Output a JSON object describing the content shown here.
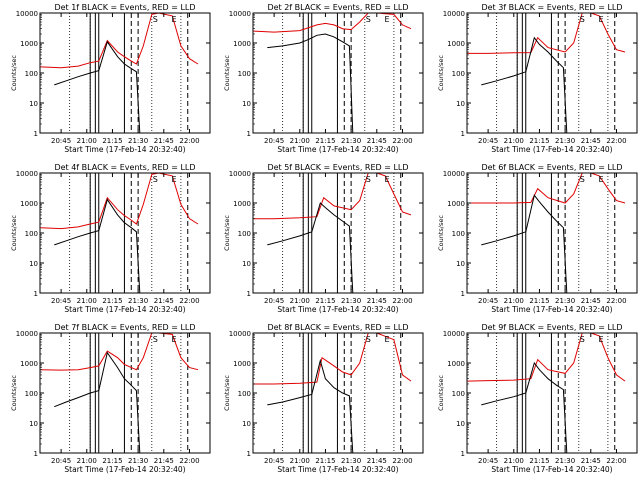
{
  "window": {
    "background": "#ffffff"
  },
  "colors": {
    "events": "#000000",
    "lld": "#e00000",
    "axis": "#000000"
  },
  "chart_data": [
    {
      "type": "line",
      "title": "Det 1f BLACK = Events, RED = LLD",
      "xlabel": "Start Time (17-Feb-14 20:32:40)",
      "ylabel": "Counts/sec",
      "y_scale": "log",
      "ylim": [
        1,
        10000
      ],
      "x_ticks": [
        "20:45",
        "21:00",
        "21:15",
        "21:30",
        "21:45",
        "22:00"
      ],
      "y_ticks": [
        "1",
        "10",
        "100",
        "1000",
        "10000"
      ],
      "annotations": [
        "S",
        "E"
      ],
      "series": [
        {
          "name": "BLACK = Events",
          "x": [
            "20:41",
            "20:48",
            "20:55",
            "21:02",
            "21:07",
            "21:12",
            "21:18",
            "21:22",
            "21:26",
            "21:29",
            "21:31"
          ],
          "y": [
            40,
            55,
            75,
            100,
            120,
            1100,
            350,
            200,
            140,
            110,
            1
          ]
        },
        {
          "name": "RED = LLD",
          "x": [
            "20:33",
            "20:45",
            "20:55",
            "21:02",
            "21:07",
            "21:12",
            "21:18",
            "21:22",
            "21:26",
            "21:29",
            "21:33",
            "21:38",
            "21:42",
            "21:50",
            "21:55",
            "22:00",
            "22:05"
          ],
          "y": [
            160,
            150,
            170,
            220,
            250,
            1200,
            500,
            350,
            250,
            200,
            800,
            9000,
            10000,
            8000,
            800,
            300,
            200
          ]
        }
      ]
    },
    {
      "type": "line",
      "title": "Det 2f BLACK = Events, RED = LLD",
      "xlabel": "Start Time (17-Feb-14 20:32:40)",
      "ylabel": "Counts/sec",
      "y_scale": "log",
      "ylim": [
        1,
        10000
      ],
      "x_ticks": [
        "20:45",
        "21:00",
        "21:15",
        "21:30",
        "21:45",
        "22:00"
      ],
      "y_ticks": [
        "1",
        "10",
        "100",
        "1000",
        "10000"
      ],
      "annotations": [
        "S",
        "E"
      ],
      "series": [
        {
          "name": "BLACK = Events",
          "x": [
            "20:41",
            "20:50",
            "21:00",
            "21:05",
            "21:10",
            "21:15",
            "21:20",
            "21:25",
            "21:29",
            "21:31"
          ],
          "y": [
            700,
            800,
            1000,
            1300,
            1800,
            2000,
            1600,
            1100,
            800,
            1
          ]
        },
        {
          "name": "RED = LLD",
          "x": [
            "20:33",
            "20:45",
            "21:00",
            "21:10",
            "21:15",
            "21:20",
            "21:25",
            "21:30",
            "21:35",
            "21:40",
            "21:45",
            "21:55",
            "22:00",
            "22:05"
          ],
          "y": [
            2500,
            2300,
            2600,
            4000,
            4500,
            4000,
            3000,
            2800,
            5000,
            10000,
            10000,
            9000,
            4000,
            3000
          ]
        }
      ]
    },
    {
      "type": "line",
      "title": "Det 3f BLACK = Events, RED = LLD",
      "xlabel": "Start Time (17-Feb-14 20:32:40)",
      "ylabel": "Counts/sec",
      "y_scale": "log",
      "ylim": [
        1,
        10000
      ],
      "x_ticks": [
        "20:45",
        "21:00",
        "21:15",
        "21:30",
        "21:45",
        "22:00"
      ],
      "y_ticks": [
        "1",
        "10",
        "100",
        "1000",
        "10000"
      ],
      "annotations": [
        "S",
        "E"
      ],
      "series": [
        {
          "name": "BLACK = Events",
          "x": [
            "20:41",
            "20:50",
            "21:00",
            "21:07",
            "21:12",
            "21:15",
            "21:20",
            "21:25",
            "21:29",
            "21:31"
          ],
          "y": [
            40,
            55,
            80,
            110,
            1500,
            900,
            500,
            250,
            150,
            1
          ]
        },
        {
          "name": "RED = LLD",
          "x": [
            "20:33",
            "20:45",
            "21:00",
            "21:10",
            "21:14",
            "21:20",
            "21:30",
            "21:35",
            "21:40",
            "21:45",
            "21:50",
            "21:55",
            "22:00",
            "22:05"
          ],
          "y": [
            450,
            450,
            470,
            480,
            1500,
            700,
            500,
            1000,
            10000,
            10000,
            8000,
            2000,
            600,
            500
          ]
        }
      ]
    },
    {
      "type": "line",
      "title": "Det 4f BLACK = Events, RED = LLD",
      "xlabel": "Start Time (17-Feb-14 20:32:40)",
      "ylabel": "Counts/sec",
      "y_scale": "log",
      "ylim": [
        1,
        10000
      ],
      "x_ticks": [
        "20:45",
        "21:00",
        "21:15",
        "21:30",
        "21:45",
        "22:00"
      ],
      "y_ticks": [
        "1",
        "10",
        "100",
        "1000",
        "10000"
      ],
      "annotations": [
        "S",
        "E"
      ],
      "series": [
        {
          "name": "BLACK = Events",
          "x": [
            "20:41",
            "20:48",
            "20:55",
            "21:02",
            "21:07",
            "21:12",
            "21:18",
            "21:22",
            "21:26",
            "21:29",
            "21:31"
          ],
          "y": [
            40,
            55,
            75,
            100,
            120,
            1300,
            400,
            220,
            150,
            110,
            1
          ]
        },
        {
          "name": "RED = LLD",
          "x": [
            "20:33",
            "20:45",
            "20:55",
            "21:02",
            "21:07",
            "21:12",
            "21:18",
            "21:22",
            "21:26",
            "21:29",
            "21:33",
            "21:38",
            "21:42",
            "21:50",
            "21:55",
            "22:00",
            "22:05"
          ],
          "y": [
            150,
            140,
            160,
            200,
            230,
            1500,
            600,
            380,
            270,
            200,
            900,
            9000,
            10000,
            8000,
            900,
            300,
            200
          ]
        }
      ]
    },
    {
      "type": "line",
      "title": "Det 5f BLACK = Events, RED = LLD",
      "xlabel": "Start Time (17-Feb-14 20:32:40)",
      "ylabel": "Counts/sec",
      "y_scale": "log",
      "ylim": [
        1,
        10000
      ],
      "x_ticks": [
        "20:45",
        "21:00",
        "21:15",
        "21:30",
        "21:45",
        "22:00"
      ],
      "y_ticks": [
        "1",
        "10",
        "100",
        "1000",
        "10000"
      ],
      "annotations": [
        "S",
        "E"
      ],
      "series": [
        {
          "name": "BLACK = Events",
          "x": [
            "20:41",
            "20:50",
            "21:00",
            "21:07",
            "21:12",
            "21:15",
            "21:20",
            "21:25",
            "21:29",
            "21:31"
          ],
          "y": [
            40,
            55,
            80,
            110,
            1000,
            700,
            400,
            250,
            170,
            1
          ]
        },
        {
          "name": "RED = LLD",
          "x": [
            "20:33",
            "20:45",
            "21:00",
            "21:10",
            "21:14",
            "21:20",
            "21:30",
            "21:35",
            "21:40",
            "21:45",
            "21:50",
            "21:55",
            "22:00",
            "22:05"
          ],
          "y": [
            300,
            300,
            320,
            350,
            1500,
            800,
            600,
            1200,
            10000,
            10000,
            8000,
            2000,
            500,
            400
          ]
        }
      ]
    },
    {
      "type": "line",
      "title": "Det 6f BLACK = Events, RED = LLD",
      "xlabel": "Start Time (17-Feb-14 20:32:40)",
      "ylabel": "Counts/sec",
      "y_scale": "log",
      "ylim": [
        1,
        10000
      ],
      "x_ticks": [
        "20:45",
        "21:00",
        "21:15",
        "21:30",
        "21:45",
        "22:00"
      ],
      "y_ticks": [
        "1",
        "10",
        "100",
        "1000",
        "10000"
      ],
      "annotations": [
        "S",
        "E"
      ],
      "series": [
        {
          "name": "BLACK = Events",
          "x": [
            "20:41",
            "20:50",
            "21:00",
            "21:07",
            "21:12",
            "21:15",
            "21:20",
            "21:25",
            "21:29",
            "21:31"
          ],
          "y": [
            40,
            55,
            80,
            110,
            1800,
            1100,
            500,
            250,
            150,
            1
          ]
        },
        {
          "name": "RED = LLD",
          "x": [
            "20:33",
            "20:45",
            "21:00",
            "21:10",
            "21:14",
            "21:20",
            "21:30",
            "21:35",
            "21:40",
            "21:45",
            "21:50",
            "21:55",
            "22:00",
            "22:05"
          ],
          "y": [
            1000,
            1000,
            1000,
            1050,
            3000,
            1500,
            1000,
            2000,
            10000,
            10000,
            8000,
            3000,
            1200,
            1000
          ]
        }
      ]
    },
    {
      "type": "line",
      "title": "Det 7f BLACK = Events, RED = LLD",
      "xlabel": "Start Time (17-Feb-14 20:32:40)",
      "ylabel": "Counts/sec",
      "y_scale": "log",
      "ylim": [
        1,
        10000
      ],
      "x_ticks": [
        "20:45",
        "21:00",
        "21:15",
        "21:30",
        "21:45",
        "22:00"
      ],
      "y_ticks": [
        "1",
        "10",
        "100",
        "1000",
        "10000"
      ],
      "annotations": [
        "S",
        "E"
      ],
      "series": [
        {
          "name": "BLACK = Events",
          "x": [
            "20:41",
            "20:48",
            "20:55",
            "21:02",
            "21:07",
            "21:12",
            "21:18",
            "21:22",
            "21:26",
            "21:29",
            "21:31"
          ],
          "y": [
            35,
            50,
            70,
            100,
            120,
            2200,
            700,
            300,
            180,
            120,
            1
          ]
        },
        {
          "name": "RED = LLD",
          "x": [
            "20:33",
            "20:45",
            "20:55",
            "21:02",
            "21:07",
            "21:12",
            "21:18",
            "21:22",
            "21:26",
            "21:29",
            "21:33",
            "21:38",
            "21:42",
            "21:50",
            "21:55",
            "22:00",
            "22:05"
          ],
          "y": [
            600,
            580,
            600,
            700,
            800,
            2500,
            1500,
            900,
            700,
            600,
            1500,
            10000,
            10000,
            9000,
            1500,
            700,
            600
          ]
        }
      ]
    },
    {
      "type": "line",
      "title": "Det 8f BLACK = Events, RED = LLD",
      "xlabel": "Start Time (17-Feb-14 20:32:40)",
      "ylabel": "Counts/sec",
      "y_scale": "log",
      "ylim": [
        1,
        10000
      ],
      "x_ticks": [
        "20:45",
        "21:00",
        "21:15",
        "21:30",
        "21:45",
        "22:00"
      ],
      "y_ticks": [
        "1",
        "10",
        "100",
        "1000",
        "10000"
      ],
      "annotations": [
        "S",
        "E"
      ],
      "series": [
        {
          "name": "BLACK = Events",
          "x": [
            "20:41",
            "20:50",
            "21:00",
            "21:07",
            "21:12",
            "21:15",
            "21:20",
            "21:25",
            "21:29",
            "21:31"
          ],
          "y": [
            40,
            50,
            70,
            90,
            1200,
            300,
            150,
            100,
            80,
            1
          ]
        },
        {
          "name": "RED = LLD",
          "x": [
            "20:33",
            "20:45",
            "21:00",
            "21:10",
            "21:13",
            "21:20",
            "21:25",
            "21:30",
            "21:35",
            "21:40",
            "21:45",
            "21:55",
            "22:00",
            "22:05"
          ],
          "y": [
            200,
            200,
            210,
            230,
            1500,
            800,
            500,
            400,
            1000,
            10000,
            10000,
            6000,
            400,
            250
          ]
        }
      ]
    },
    {
      "type": "line",
      "title": "Det 9f BLACK = Events, RED = LLD",
      "xlabel": "Start Time (17-Feb-14 20:32:40)",
      "ylabel": "Counts/sec",
      "y_scale": "log",
      "ylim": [
        1,
        10000
      ],
      "x_ticks": [
        "20:45",
        "21:00",
        "21:15",
        "21:30",
        "21:45",
        "22:00"
      ],
      "y_ticks": [
        "1",
        "10",
        "100",
        "1000",
        "10000"
      ],
      "annotations": [
        "S",
        "E"
      ],
      "series": [
        {
          "name": "BLACK = Events",
          "x": [
            "20:41",
            "20:50",
            "21:00",
            "21:07",
            "21:12",
            "21:15",
            "21:20",
            "21:25",
            "21:29",
            "21:31"
          ],
          "y": [
            40,
            55,
            75,
            100,
            1000,
            600,
            300,
            180,
            130,
            1
          ]
        },
        {
          "name": "RED = LLD",
          "x": [
            "20:33",
            "20:45",
            "21:00",
            "21:10",
            "21:14",
            "21:20",
            "21:30",
            "21:35",
            "21:40",
            "21:45",
            "21:50",
            "21:55",
            "22:00",
            "22:05"
          ],
          "y": [
            250,
            260,
            270,
            300,
            1300,
            600,
            450,
            1000,
            10000,
            10000,
            8000,
            1500,
            400,
            250
          ]
        }
      ]
    }
  ]
}
